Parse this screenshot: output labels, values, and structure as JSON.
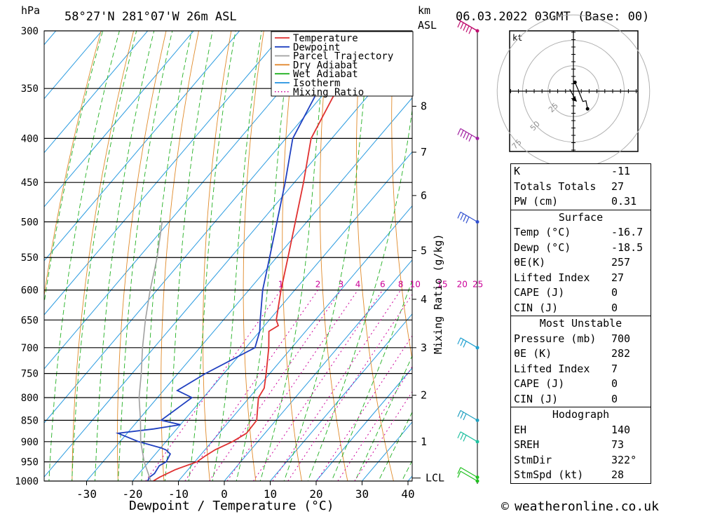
{
  "header": {
    "hpa_label": "hPa",
    "location": "58°27'N  281°07'W  26m  ASL",
    "km_label": "km",
    "asl_label": "ASL",
    "datetime": "06.03.2022  03GMT  (Base: 00)"
  },
  "legend": {
    "items": [
      {
        "label": "Temperature",
        "color": "#e03030",
        "style": "solid"
      },
      {
        "label": "Dewpoint",
        "color": "#2040c0",
        "style": "solid"
      },
      {
        "label": "Parcel Trajectory",
        "color": "#a0a0a0",
        "style": "solid"
      },
      {
        "label": "Dry Adiabat",
        "color": "#e08020",
        "style": "solid"
      },
      {
        "label": "Wet Adiabat",
        "color": "#20b020",
        "style": "solid"
      },
      {
        "label": "Isotherm",
        "color": "#2090e0",
        "style": "solid"
      },
      {
        "label": "Mixing Ratio",
        "color": "#cc0099",
        "style": "dotted"
      }
    ]
  },
  "chart_data": {
    "type": "line",
    "xlabel": "Dewpoint / Temperature (°C)",
    "ylabel_left": "hPa",
    "ylabel_right": "Mixing Ratio (g/kg)",
    "x_ticks": [
      -30,
      -20,
      -10,
      0,
      10,
      20,
      30,
      40
    ],
    "pressure_levels": [
      300,
      350,
      400,
      450,
      500,
      550,
      600,
      650,
      700,
      750,
      800,
      850,
      900,
      950,
      1000
    ],
    "km_ticks": [
      {
        "km": 8,
        "p": 367
      },
      {
        "km": 7,
        "p": 415
      },
      {
        "km": 6,
        "p": 466
      },
      {
        "km": 5,
        "p": 540
      },
      {
        "km": 4,
        "p": 615
      },
      {
        "km": 3,
        "p": 700
      },
      {
        "km": 2,
        "p": 795
      },
      {
        "km": 1,
        "p": 900
      }
    ],
    "lcl_label": "LCL",
    "lcl_pressure": 992,
    "mixing_ratio_labels": [
      "1",
      "2",
      "3",
      "4",
      "6",
      "8",
      "10",
      "15",
      "20",
      "25"
    ],
    "mixing_ratio_values": [
      1,
      2,
      3,
      4,
      6,
      8,
      10,
      15,
      20,
      25
    ],
    "series": [
      {
        "name": "Temperature",
        "points": [
          [
            1000,
            -15.5
          ],
          [
            990,
            -14.8
          ],
          [
            970,
            -12.8
          ],
          [
            950,
            -9.5
          ],
          [
            935,
            -8.8
          ],
          [
            920,
            -7.8
          ],
          [
            900,
            -5.5
          ],
          [
            880,
            -4.0
          ],
          [
            850,
            -4.2
          ],
          [
            800,
            -8.0
          ],
          [
            780,
            -8.5
          ],
          [
            750,
            -10.8
          ],
          [
            700,
            -15.0
          ],
          [
            670,
            -18.0
          ],
          [
            660,
            -17.0
          ],
          [
            650,
            -18.5
          ],
          [
            600,
            -23.0
          ],
          [
            550,
            -27.5
          ],
          [
            500,
            -32.5
          ],
          [
            450,
            -38.0
          ],
          [
            400,
            -44.5
          ],
          [
            350,
            -48.0
          ],
          [
            300,
            -53.0
          ]
        ]
      },
      {
        "name": "Dewpoint",
        "points": [
          [
            1000,
            -16.7
          ],
          [
            990,
            -17.0
          ],
          [
            980,
            -16.6
          ],
          [
            960,
            -17.0
          ],
          [
            950,
            -16.2
          ],
          [
            930,
            -16.8
          ],
          [
            920,
            -18.5
          ],
          [
            915,
            -20.0
          ],
          [
            900,
            -26.0
          ],
          [
            880,
            -32.0
          ],
          [
            870,
            -25.0
          ],
          [
            860,
            -20.0
          ],
          [
            850,
            -25.0
          ],
          [
            800,
            -22.5
          ],
          [
            785,
            -27.0
          ],
          [
            750,
            -24.0
          ],
          [
            700,
            -18.0
          ],
          [
            670,
            -20.0
          ],
          [
            650,
            -22.0
          ],
          [
            600,
            -27.0
          ],
          [
            550,
            -31.5
          ],
          [
            500,
            -36.5
          ],
          [
            450,
            -42.0
          ],
          [
            400,
            -48.5
          ],
          [
            350,
            -52.0
          ],
          [
            300,
            -57.0
          ]
        ]
      },
      {
        "name": "Parcel Trajectory",
        "points": [
          [
            1000,
            -16.0
          ],
          [
            950,
            -21.0
          ],
          [
            900,
            -25.5
          ],
          [
            850,
            -29.5
          ],
          [
            800,
            -34.0
          ],
          [
            750,
            -38.0
          ],
          [
            700,
            -42.5
          ],
          [
            650,
            -47.0
          ],
          [
            600,
            -51.5
          ],
          [
            550,
            -56.0
          ],
          [
            500,
            -61.5
          ]
        ]
      }
    ],
    "wind_barbs": [
      {
        "p": 1000,
        "speed_kt": 10,
        "dir_deg": 320,
        "color": "#20c020"
      },
      {
        "p": 990,
        "speed_kt": 10,
        "dir_deg": 320,
        "color": "#20c020"
      },
      {
        "p": 900,
        "speed_kt": 25,
        "dir_deg": 300,
        "color": "#20c0a0"
      },
      {
        "p": 850,
        "speed_kt": 30,
        "dir_deg": 290,
        "color": "#20a0c0"
      },
      {
        "p": 700,
        "speed_kt": 30,
        "dir_deg": 300,
        "color": "#20a0d0"
      },
      {
        "p": 500,
        "speed_kt": 40,
        "dir_deg": 310,
        "color": "#3050d0"
      },
      {
        "p": 400,
        "speed_kt": 45,
        "dir_deg": 305,
        "color": "#a020a0"
      },
      {
        "p": 300,
        "speed_kt": 50,
        "dir_deg": 300,
        "color": "#c01070"
      }
    ],
    "hodograph": {
      "unit_label": "kt",
      "ring_labels": [
        "25",
        "50",
        "75"
      ],
      "points": [
        [
          2,
          12
        ],
        [
          6,
          2
        ],
        [
          12,
          -14
        ],
        [
          16,
          -13
        ],
        [
          18,
          -24
        ]
      ],
      "storm_motion": [
        [
          6,
          -7
        ],
        [
          4,
          -14
        ]
      ]
    }
  },
  "indices": {
    "general": [
      {
        "label": "K",
        "value": "-11"
      },
      {
        "label": "Totals Totals",
        "value": "27"
      },
      {
        "label": "PW (cm)",
        "value": "0.31"
      }
    ],
    "surface_title": "Surface",
    "surface": [
      {
        "label": "Temp (°C)",
        "value": "-16.7"
      },
      {
        "label": "Dewp (°C)",
        "value": "-18.5"
      },
      {
        "label": "θE(K)",
        "value": "257"
      },
      {
        "label": "Lifted Index",
        "value": "27"
      },
      {
        "label": "CAPE (J)",
        "value": "0"
      },
      {
        "label": "CIN (J)",
        "value": "0"
      }
    ],
    "most_unstable_title": "Most Unstable",
    "most_unstable": [
      {
        "label": "Pressure (mb)",
        "value": "700"
      },
      {
        "label": "θE (K)",
        "value": "282"
      },
      {
        "label": "Lifted Index",
        "value": "7"
      },
      {
        "label": "CAPE (J)",
        "value": "0"
      },
      {
        "label": "CIN (J)",
        "value": "0"
      }
    ],
    "hodograph_title": "Hodograph",
    "hodograph": [
      {
        "label": "EH",
        "value": "140"
      },
      {
        "label": "SREH",
        "value": "73"
      },
      {
        "label": "StmDir",
        "value": "322°"
      },
      {
        "label": "StmSpd (kt)",
        "value": "28"
      }
    ]
  },
  "footer": {
    "copyright_symbol": "©",
    "site": "weatheronline.co.uk"
  }
}
